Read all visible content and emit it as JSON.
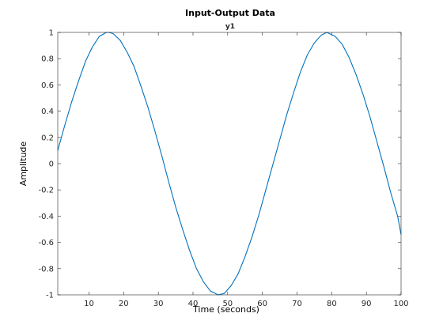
{
  "chart_data": {
    "type": "line",
    "title": "Input-Output Data",
    "subtitle": "y1",
    "xlabel": "Time (seconds)",
    "ylabel": "Amplitude",
    "xlim": [
      1,
      100
    ],
    "ylim": [
      -1,
      1
    ],
    "xticks": [
      10,
      20,
      30,
      40,
      50,
      60,
      70,
      80,
      90,
      100
    ],
    "yticks": [
      -1,
      -0.8,
      -0.6,
      -0.4,
      -0.2,
      0,
      0.2,
      0.4,
      0.6,
      0.8,
      1
    ],
    "xtick_labels": [
      "10",
      "20",
      "30",
      "40",
      "50",
      "60",
      "70",
      "80",
      "90",
      "100"
    ],
    "ytick_labels": [
      "-1",
      "-0.8",
      "-0.6",
      "-0.4",
      "-0.2",
      "0",
      "0.2",
      "0.4",
      "0.6",
      "0.8",
      "1"
    ],
    "grid": false,
    "series": [
      {
        "color": "#0072bd",
        "x": [
          1,
          3,
          5,
          7,
          9,
          11,
          13,
          15,
          15.8,
          17,
          19,
          21,
          23,
          25,
          27,
          29,
          31,
          33,
          35,
          37,
          39,
          41,
          43,
          45,
          47.2,
          49,
          51,
          53,
          55,
          57,
          59,
          61,
          63,
          65,
          67,
          69,
          71,
          73,
          75,
          77,
          78.6,
          81,
          83,
          85,
          87,
          89,
          91,
          93,
          95,
          97,
          99,
          100
        ],
        "y": [
          0.1,
          0.29,
          0.47,
          0.63,
          0.78,
          0.89,
          0.97,
          1.0,
          1.0,
          0.99,
          0.94,
          0.85,
          0.74,
          0.59,
          0.43,
          0.25,
          0.06,
          -0.14,
          -0.33,
          -0.5,
          -0.66,
          -0.8,
          -0.9,
          -0.97,
          -1.0,
          -0.99,
          -0.93,
          -0.84,
          -0.71,
          -0.56,
          -0.39,
          -0.2,
          -0.01,
          0.18,
          0.37,
          0.54,
          0.7,
          0.83,
          0.92,
          0.98,
          1.0,
          0.97,
          0.91,
          0.81,
          0.68,
          0.53,
          0.36,
          0.17,
          -0.02,
          -0.22,
          -0.4,
          -0.54
        ]
      }
    ]
  }
}
